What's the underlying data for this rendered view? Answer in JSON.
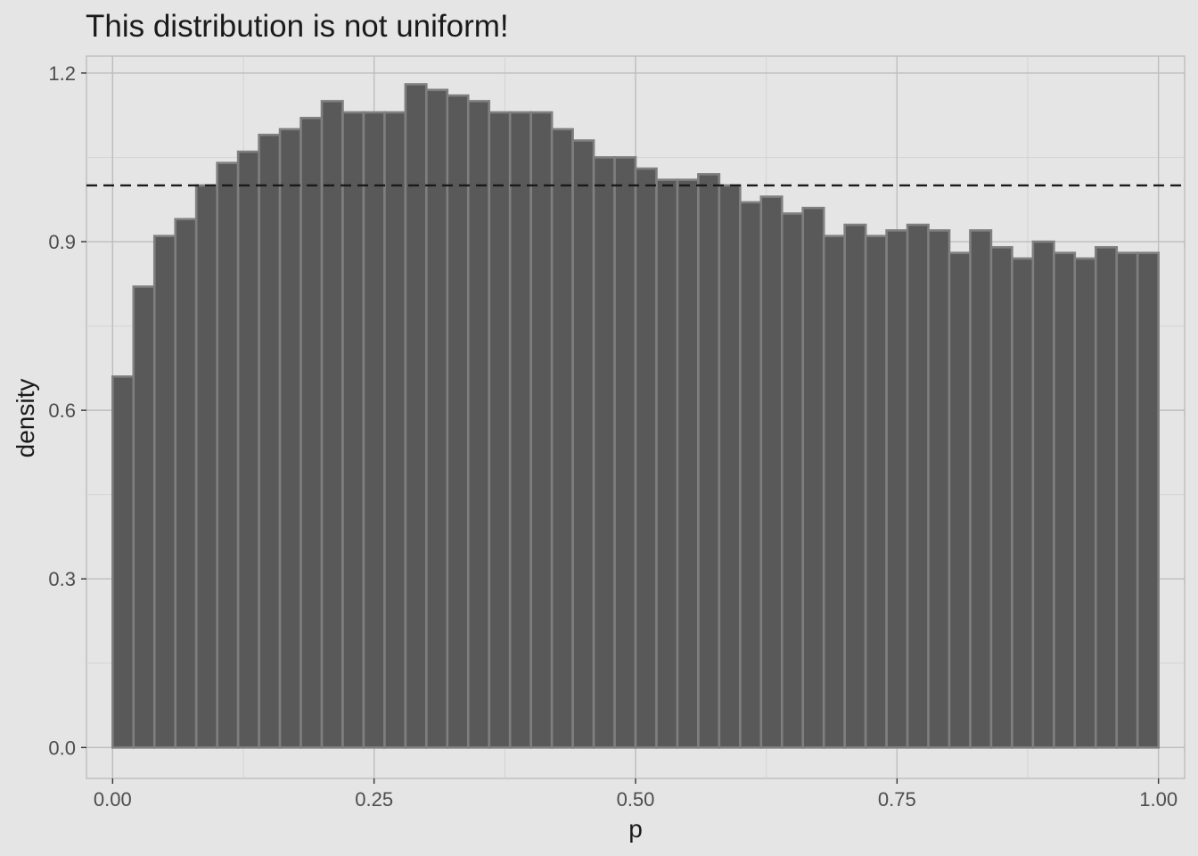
{
  "chart_data": {
    "type": "bar",
    "title": "This distribution is not uniform!",
    "xlabel": "p",
    "ylabel": "density",
    "xlim": [
      -0.025,
      1.025
    ],
    "ylim": [
      -0.055,
      1.23
    ],
    "x_ticks": [
      {
        "value": 0.0,
        "label": "0.00"
      },
      {
        "value": 0.25,
        "label": "0.25"
      },
      {
        "value": 0.5,
        "label": "0.50"
      },
      {
        "value": 0.75,
        "label": "0.75"
      },
      {
        "value": 1.0,
        "label": "1.00"
      }
    ],
    "y_ticks": [
      {
        "value": 0.0,
        "label": "0.0"
      },
      {
        "value": 0.3,
        "label": "0.3"
      },
      {
        "value": 0.6,
        "label": "0.6"
      },
      {
        "value": 0.9,
        "label": "0.9"
      },
      {
        "value": 1.2,
        "label": "1.2"
      }
    ],
    "x_minor_breaks": [
      0.125,
      0.375,
      0.625,
      0.875
    ],
    "y_minor_breaks": [
      0.15,
      0.45,
      0.75,
      1.05
    ],
    "bin_range": [
      0,
      1
    ],
    "bins": 50,
    "values": [
      0.66,
      0.82,
      0.91,
      0.94,
      1.0,
      1.04,
      1.06,
      1.09,
      1.1,
      1.12,
      1.15,
      1.13,
      1.13,
      1.13,
      1.18,
      1.17,
      1.16,
      1.15,
      1.13,
      1.13,
      1.13,
      1.1,
      1.08,
      1.05,
      1.05,
      1.03,
      1.01,
      1.01,
      1.02,
      1.0,
      0.97,
      0.98,
      0.95,
      0.96,
      0.91,
      0.93,
      0.91,
      0.92,
      0.93,
      0.92,
      0.88,
      0.92,
      0.89,
      0.87,
      0.9,
      0.88,
      0.87,
      0.89,
      0.88,
      0.88
    ],
    "reference_line": {
      "y": 1.0,
      "style": "dashed"
    },
    "grid": true,
    "colors": {
      "background": "#e5e5e5",
      "bar_fill": "#595959",
      "bar_outline": "#7f7f7f",
      "grid_major": "#bdbdbd",
      "grid_minor": "#d4d4d4",
      "reference_line": "#1a1a1a"
    }
  }
}
